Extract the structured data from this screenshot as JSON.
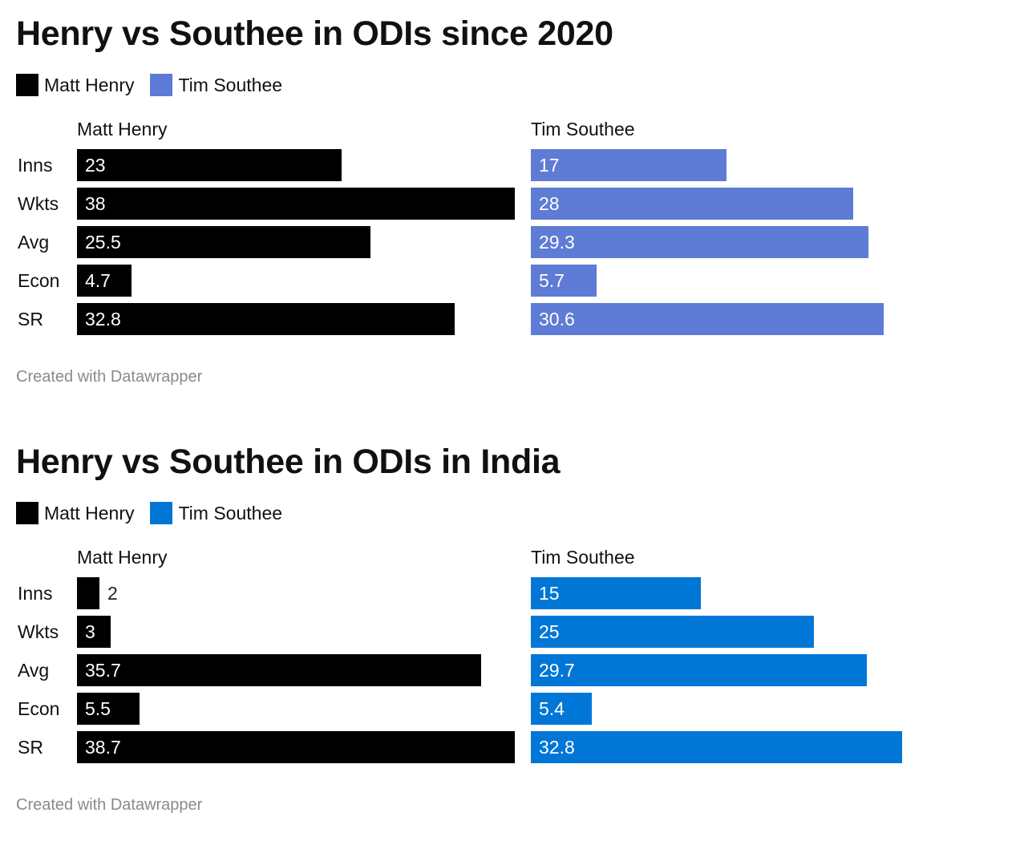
{
  "chart_data": [
    {
      "type": "bar",
      "title": "Henry vs Southee in ODIs since 2020",
      "categories": [
        "Inns",
        "Wkts",
        "Avg",
        "Econ",
        "SR"
      ],
      "series": [
        {
          "name": "Matt Henry",
          "color": "#000000",
          "values": [
            23,
            38,
            25.5,
            4.7,
            32.8
          ]
        },
        {
          "name": "Tim Southee",
          "color": "#5e7bd6",
          "values": [
            17,
            28,
            29.3,
            5.7,
            30.6
          ]
        }
      ],
      "legend": "top-left",
      "grid": false,
      "footer": "Created with Datawrapper"
    },
    {
      "type": "bar",
      "title": "Henry vs Southee in ODIs in India",
      "categories": [
        "Inns",
        "Wkts",
        "Avg",
        "Econ",
        "SR"
      ],
      "series": [
        {
          "name": "Matt Henry",
          "color": "#000000",
          "values": [
            2,
            3,
            35.7,
            5.5,
            38.7
          ]
        },
        {
          "name": "Tim Southee",
          "color": "#0077d6",
          "values": [
            15,
            25,
            29.7,
            5.4,
            32.8
          ]
        }
      ],
      "legend": "top-left",
      "grid": false,
      "footer": "Created with Datawrapper"
    }
  ]
}
